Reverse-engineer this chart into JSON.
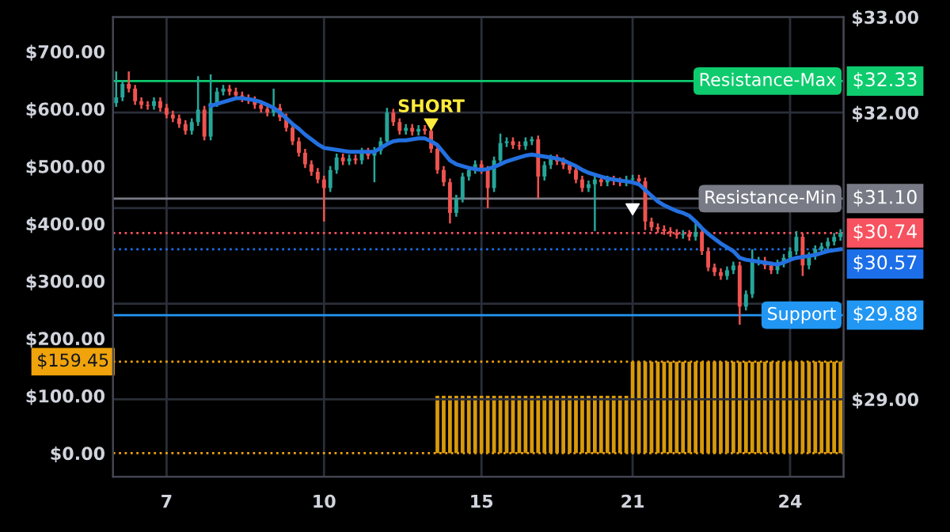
{
  "chart_data": {
    "type": "candlestick",
    "categories": [
      null,
      null,
      null,
      null,
      null,
      null,
      null,
      null,
      "7",
      null,
      null,
      null,
      null,
      null,
      null,
      null,
      null,
      null,
      null,
      null,
      null,
      null,
      null,
      null,
      null,
      null,
      null,
      null,
      null,
      null,
      null,
      null,
      null,
      "10",
      null,
      null,
      null,
      null,
      null,
      null,
      null,
      null,
      null,
      null,
      null,
      null,
      null,
      null,
      null,
      null,
      null,
      null,
      null,
      null,
      null,
      null,
      null,
      null,
      "15",
      null,
      null,
      null,
      null,
      null,
      null,
      null,
      null,
      null,
      null,
      null,
      null,
      null,
      null,
      null,
      null,
      null,
      null,
      null,
      null,
      null,
      null,
      null,
      "21",
      null,
      null,
      null,
      null,
      null,
      null,
      null,
      null,
      null,
      null,
      null,
      null,
      null,
      null,
      null,
      null,
      null,
      null,
      null,
      null,
      null,
      null,
      null,
      null,
      "24",
      null,
      null,
      null,
      null,
      null,
      null,
      null,
      null
    ],
    "colors": [
      "#26a69a",
      "#26a69a",
      "#ef5350",
      "#ef5350",
      "#ef5350",
      "#ef5350",
      "#26a69a",
      "#ef5350",
      "#ef5350",
      "#ef5350",
      "#ef5350",
      "#ef5350",
      "#26a69a",
      "#26a69a",
      "#ef5350",
      "#26a69a",
      "#26a69a",
      "#26a69a",
      "#ef5350",
      "#ef5350",
      "#ef5350",
      "#ef5350",
      "#ef5350",
      "#ef5350",
      "#ef5350",
      "#26a69a",
      "#ef5350",
      "#ef5350",
      "#ef5350",
      "#ef5350",
      "#ef5350",
      "#ef5350",
      "#ef5350",
      "#ef5350",
      "#26a69a",
      "#26a69a",
      "#ef5350",
      "#26a69a",
      "#ef5350",
      "#26a69a",
      "#ef5350",
      "#26a69a",
      "#26a69a",
      "#26a69a",
      "#ef5350",
      "#ef5350",
      "#26a69a",
      "#ef5350",
      "#26a69a",
      "#ef5350",
      "#ef5350",
      "#ef5350",
      "#ef5350",
      "#ef5350",
      "#26a69a",
      "#26a69a",
      "#26a69a",
      "#26a69a",
      "#ef5350",
      "#ef5350",
      "#26a69a",
      "#26a69a",
      "#26a69a",
      "#ef5350",
      "#ef5350",
      "#26a69a",
      "#26a69a",
      "#ef5350",
      "#26a69a",
      "#26a69a",
      "#ef5350",
      "#ef5350",
      "#ef5350",
      "#ef5350",
      "#ef5350",
      "#26a69a",
      "#26a69a",
      "#ef5350",
      "#26a69a",
      "#ef5350",
      "#ef5350",
      "#26a69a",
      "#26a69a",
      "#ef5350",
      "#ef5350",
      "#ef5350",
      "#ef5350",
      "#ef5350",
      "#ef5350",
      "#ef5350",
      "#26a69a",
      "#ef5350",
      "#26a69a",
      "#ef5350",
      "#ef5350",
      "#ef5350",
      "#ef5350",
      "#26a69a",
      "#26a69a",
      "#ef5350",
      "#26a69a",
      "#26a69a",
      "#26a69a",
      "#ef5350",
      "#ef5350",
      "#26a69a",
      "#26a69a",
      "#26a69a",
      "#26a69a",
      "#ef5350",
      "#26a69a",
      "#26a69a",
      "#26a69a",
      "#26a69a",
      "#26a69a",
      "#26a69a"
    ],
    "ohlc": [
      [
        32.1,
        32.43,
        32.06,
        32.16
      ],
      [
        32.16,
        32.34,
        32.12,
        32.3
      ],
      [
        32.3,
        32.43,
        32.21,
        32.25
      ],
      [
        32.25,
        32.29,
        32.08,
        32.12
      ],
      [
        32.12,
        32.16,
        32.04,
        32.08
      ],
      [
        32.08,
        32.12,
        32.03,
        32.07
      ],
      [
        32.07,
        32.16,
        32.03,
        32.12
      ],
      [
        32.12,
        32.16,
        32.01,
        32.05
      ],
      [
        32.05,
        32.09,
        31.94,
        31.98
      ],
      [
        31.98,
        32.02,
        31.9,
        31.94
      ],
      [
        31.94,
        31.98,
        31.84,
        31.88
      ],
      [
        31.88,
        31.92,
        31.77,
        31.81
      ],
      [
        31.81,
        31.94,
        31.77,
        31.9
      ],
      [
        31.9,
        32.38,
        31.86,
        32.03
      ],
      [
        32.03,
        32.07,
        31.71,
        31.75
      ],
      [
        31.75,
        32.4,
        31.71,
        32.1
      ],
      [
        32.1,
        32.26,
        32.06,
        32.22
      ],
      [
        32.22,
        32.29,
        32.18,
        32.25
      ],
      [
        32.25,
        32.29,
        32.18,
        32.22
      ],
      [
        32.22,
        32.26,
        32.14,
        32.18
      ],
      [
        32.18,
        32.22,
        32.11,
        32.15
      ],
      [
        32.15,
        32.19,
        32.09,
        32.13
      ],
      [
        32.13,
        32.17,
        32.04,
        32.08
      ],
      [
        32.08,
        32.12,
        32.0,
        32.04
      ],
      [
        32.04,
        32.08,
        31.96,
        32.0
      ],
      [
        32.0,
        32.25,
        31.96,
        32.05
      ],
      [
        32.05,
        32.09,
        31.91,
        31.95
      ],
      [
        31.95,
        31.99,
        31.8,
        31.84
      ],
      [
        31.84,
        31.88,
        31.66,
        31.7
      ],
      [
        31.7,
        31.74,
        31.54,
        31.58
      ],
      [
        31.58,
        31.62,
        31.42,
        31.46
      ],
      [
        31.46,
        31.5,
        31.34,
        31.38
      ],
      [
        31.38,
        31.42,
        31.26,
        31.3
      ],
      [
        31.3,
        31.34,
        30.86,
        31.21
      ],
      [
        31.21,
        31.44,
        31.17,
        31.4
      ],
      [
        31.4,
        31.57,
        31.36,
        31.53
      ],
      [
        31.53,
        31.57,
        31.45,
        31.49
      ],
      [
        31.49,
        31.56,
        31.45,
        31.52
      ],
      [
        31.52,
        31.56,
        31.46,
        31.5
      ],
      [
        31.5,
        31.63,
        31.46,
        31.59
      ],
      [
        31.59,
        31.63,
        31.51,
        31.55
      ],
      [
        31.55,
        31.64,
        31.27,
        31.6
      ],
      [
        31.6,
        31.74,
        31.56,
        31.7
      ],
      [
        31.7,
        32.05,
        31.66,
        32.0
      ],
      [
        32.0,
        32.04,
        31.86,
        31.9
      ],
      [
        31.9,
        31.94,
        31.77,
        31.81
      ],
      [
        31.81,
        31.88,
        31.77,
        31.84
      ],
      [
        31.84,
        31.88,
        31.76,
        31.8
      ],
      [
        31.8,
        31.87,
        31.76,
        31.83
      ],
      [
        31.83,
        31.87,
        31.77,
        31.81
      ],
      [
        31.81,
        31.85,
        31.58,
        31.62
      ],
      [
        31.62,
        31.66,
        31.36,
        31.4
      ],
      [
        31.4,
        31.44,
        31.23,
        31.27
      ],
      [
        31.27,
        31.31,
        30.84,
        30.95
      ],
      [
        30.95,
        31.14,
        30.91,
        31.1
      ],
      [
        31.1,
        31.37,
        31.06,
        31.33
      ],
      [
        31.33,
        31.44,
        31.29,
        31.4
      ],
      [
        31.4,
        31.5,
        31.36,
        31.46
      ],
      [
        31.46,
        31.5,
        31.36,
        31.4
      ],
      [
        31.4,
        31.44,
        31.0,
        31.21
      ],
      [
        31.21,
        31.54,
        31.17,
        31.5
      ],
      [
        31.5,
        31.78,
        31.46,
        31.68
      ],
      [
        31.68,
        31.74,
        31.64,
        31.7
      ],
      [
        31.7,
        31.74,
        31.62,
        31.66
      ],
      [
        31.66,
        31.7,
        31.61,
        31.65
      ],
      [
        31.65,
        31.74,
        31.61,
        31.7
      ],
      [
        31.7,
        31.75,
        31.66,
        31.72
      ],
      [
        31.72,
        31.76,
        31.1,
        31.33
      ],
      [
        31.33,
        31.49,
        31.29,
        31.45
      ],
      [
        31.45,
        31.56,
        31.41,
        31.52
      ],
      [
        31.52,
        31.56,
        31.45,
        31.49
      ],
      [
        31.49,
        31.53,
        31.41,
        31.45
      ],
      [
        31.45,
        31.49,
        31.36,
        31.4
      ],
      [
        31.4,
        31.44,
        31.26,
        31.3
      ],
      [
        31.3,
        31.34,
        31.17,
        31.21
      ],
      [
        31.21,
        31.29,
        31.17,
        31.25
      ],
      [
        31.25,
        31.34,
        30.76,
        31.3
      ],
      [
        31.3,
        31.34,
        31.23,
        31.27
      ],
      [
        31.27,
        31.34,
        31.23,
        31.3
      ],
      [
        31.3,
        31.34,
        31.24,
        31.28
      ],
      [
        31.28,
        31.32,
        31.23,
        31.27
      ],
      [
        31.27,
        31.34,
        31.23,
        31.3
      ],
      [
        31.3,
        31.35,
        31.26,
        31.31
      ],
      [
        31.31,
        31.35,
        31.24,
        31.28
      ],
      [
        31.28,
        31.32,
        30.77,
        30.86
      ],
      [
        30.86,
        30.9,
        30.76,
        30.8
      ],
      [
        30.8,
        30.84,
        30.74,
        30.78
      ],
      [
        30.78,
        30.82,
        30.72,
        30.76
      ],
      [
        30.76,
        30.8,
        30.7,
        30.74
      ],
      [
        30.74,
        30.78,
        30.68,
        30.72
      ],
      [
        30.72,
        30.77,
        30.68,
        30.73
      ],
      [
        30.73,
        30.77,
        30.66,
        30.7
      ],
      [
        30.7,
        30.86,
        30.66,
        30.75
      ],
      [
        30.75,
        30.79,
        30.51,
        30.55
      ],
      [
        30.55,
        30.59,
        30.34,
        30.38
      ],
      [
        30.38,
        30.42,
        30.29,
        30.33
      ],
      [
        30.33,
        30.37,
        30.25,
        30.29
      ],
      [
        30.29,
        30.39,
        30.25,
        30.35
      ],
      [
        30.35,
        30.44,
        30.31,
        30.4
      ],
      [
        30.4,
        30.44,
        29.78,
        29.97
      ],
      [
        29.97,
        30.14,
        29.93,
        30.1
      ],
      [
        30.1,
        30.57,
        30.06,
        30.44
      ],
      [
        30.44,
        30.49,
        30.4,
        30.45
      ],
      [
        30.45,
        30.49,
        30.36,
        30.4
      ],
      [
        30.4,
        30.44,
        30.31,
        30.35
      ],
      [
        30.35,
        30.46,
        30.31,
        30.42
      ],
      [
        30.42,
        30.52,
        30.38,
        30.48
      ],
      [
        30.48,
        30.59,
        30.44,
        30.55
      ],
      [
        30.55,
        30.76,
        30.51,
        30.7
      ],
      [
        30.7,
        30.74,
        30.29,
        30.4
      ],
      [
        30.4,
        30.54,
        30.36,
        30.5
      ],
      [
        30.5,
        30.61,
        30.46,
        30.57
      ],
      [
        30.57,
        30.64,
        30.53,
        30.6
      ],
      [
        30.6,
        30.69,
        30.56,
        30.65
      ],
      [
        30.65,
        30.74,
        30.61,
        30.7
      ],
      [
        30.7,
        30.78,
        30.66,
        30.74
      ]
    ],
    "series": [
      {
        "type": "bar",
        "axis": "y2",
        "color": "#d89a0c",
        "values": [
          null,
          null,
          null,
          null,
          null,
          null,
          null,
          null,
          null,
          null,
          null,
          null,
          null,
          null,
          null,
          null,
          null,
          null,
          null,
          null,
          null,
          null,
          null,
          null,
          null,
          null,
          null,
          null,
          null,
          null,
          null,
          null,
          null,
          null,
          null,
          null,
          null,
          null,
          null,
          null,
          null,
          null,
          null,
          null,
          null,
          null,
          null,
          null,
          null,
          null,
          null,
          100,
          100,
          100,
          100,
          100,
          100,
          100,
          100,
          100,
          100,
          100,
          100,
          100,
          100,
          100,
          100,
          100,
          100,
          100,
          100,
          100,
          100,
          100,
          100,
          100,
          100,
          100,
          100,
          100,
          100,
          100,
          159.45,
          159.45,
          159.45,
          159.45,
          159.45,
          159.45,
          159.45,
          159.45,
          159.45,
          159.45,
          159.45,
          159.45,
          159.45,
          159.45,
          159.45,
          159.45,
          159.45,
          159.45,
          159.45,
          159.45,
          159.45,
          159.45,
          159.45,
          159.45,
          159.45,
          159.45,
          159.45,
          159.45,
          159.45,
          159.45,
          159.45,
          159.45,
          159.45,
          159.45
        ]
      },
      {
        "type": "line",
        "axis": "y",
        "color": "#2370e0",
        "line_style": "solid",
        "values": [
          null,
          null,
          null,
          null,
          null,
          null,
          null,
          null,
          null,
          null,
          null,
          null,
          null,
          null,
          null,
          32.07,
          32.09,
          32.11,
          32.13,
          32.15,
          32.15,
          32.14,
          32.13,
          32.11,
          32.08,
          32.05,
          32.0,
          31.94,
          31.88,
          31.83,
          31.77,
          31.72,
          31.67,
          31.63,
          31.62,
          31.61,
          31.6,
          31.59,
          31.59,
          31.59,
          31.59,
          31.59,
          31.63,
          31.67,
          31.7,
          31.71,
          31.71,
          31.72,
          31.73,
          31.73,
          31.7,
          31.66,
          31.58,
          31.5,
          31.46,
          31.44,
          31.42,
          31.41,
          31.4,
          31.41,
          31.43,
          31.46,
          31.49,
          31.51,
          31.53,
          31.55,
          31.56,
          31.55,
          31.54,
          31.53,
          31.52,
          31.5,
          31.47,
          31.44,
          31.4,
          31.37,
          31.35,
          31.33,
          31.31,
          31.3,
          31.29,
          31.28,
          31.27,
          31.25,
          31.19,
          31.13,
          31.07,
          31.03,
          31.0,
          30.97,
          30.95,
          30.92,
          30.86,
          30.79,
          30.73,
          30.68,
          30.63,
          30.59,
          30.55,
          30.48,
          30.46,
          30.45,
          30.44,
          30.43,
          30.42,
          30.41,
          30.43,
          30.46,
          30.48,
          30.49,
          30.5,
          30.51,
          30.53,
          30.55,
          30.56,
          30.57
        ]
      }
    ],
    "y2lim": [
      -41,
      760
    ],
    "y2ticks": [
      {
        "value": 0,
        "label": "$0.00"
      },
      {
        "value": 100,
        "label": "$100.00"
      },
      {
        "value": 200,
        "label": "$200.00"
      },
      {
        "value": 300,
        "label": "$300.00"
      },
      {
        "value": 400,
        "label": "$400.00"
      },
      {
        "value": 500,
        "label": "$500.00"
      },
      {
        "value": 600,
        "label": "$600.00"
      },
      {
        "value": 700,
        "label": "$700.00"
      }
    ],
    "ylim": [
      28.19,
      33.0
    ],
    "yticks": [
      {
        "value": 29,
        "label": "$29.00"
      },
      {
        "value": 30,
        "label": null
      },
      {
        "value": 31,
        "label": null
      },
      {
        "value": 32,
        "label": "$32.00"
      },
      {
        "value": 33,
        "label": "$33.00"
      }
    ],
    "grid": true,
    "ref_lines": [
      {
        "axis": "y",
        "value": 32.33,
        "label": "$32.33",
        "color": "#0ecb6e",
        "line_style": "solid"
      },
      {
        "axis": "y",
        "value": 31.1,
        "label": "$31.10",
        "color": "#787b86",
        "line_style": "solid"
      },
      {
        "axis": "y",
        "value": 30.74,
        "label": "$30.74",
        "color": "#f7525f",
        "line_style": "dotted"
      },
      {
        "axis": "y",
        "value": 30.57,
        "label": "$30.57",
        "color": "#1c6fe8",
        "line_style": "dotted"
      },
      {
        "axis": "y",
        "value": 29.88,
        "label": "$29.88",
        "color": "#2196f3",
        "line_style": "solid"
      },
      {
        "axis": "y2",
        "value": 159.45,
        "label": "$159.45",
        "color": "#f0a30a",
        "line_style": "dotted"
      },
      {
        "axis": "y2",
        "value": 0,
        "color": "#f0a30a",
        "line_style": "dotted"
      }
    ],
    "annotations": [
      {
        "text": "Resistance-Max",
        "y": 32.33
      },
      {
        "text": "Resistance-Min",
        "y": 31.1
      },
      {
        "text": "Support",
        "y": 29.88
      },
      "SHORT"
    ]
  }
}
